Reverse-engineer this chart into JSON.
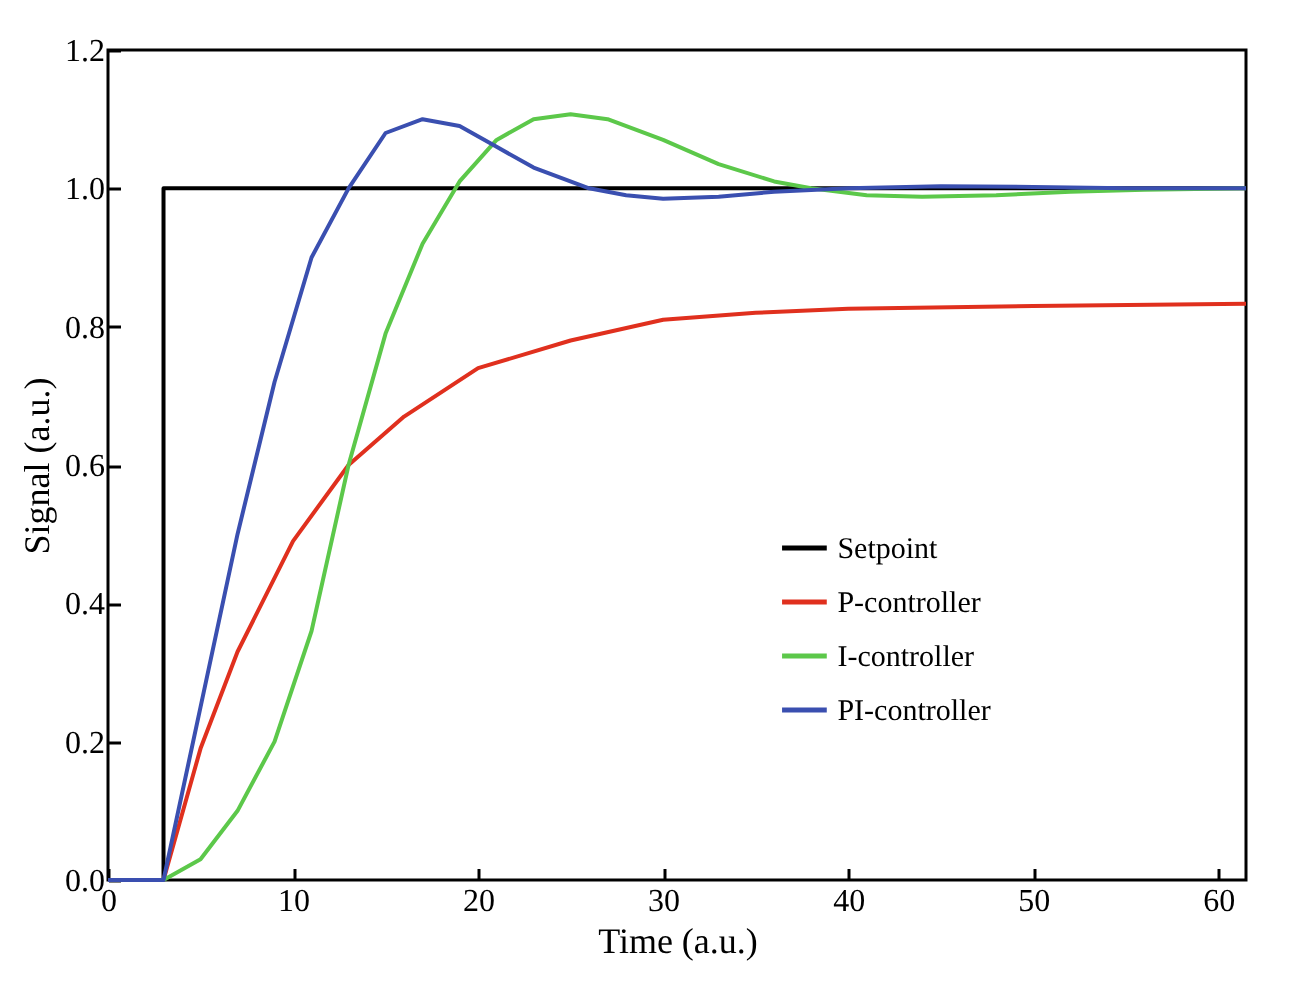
{
  "chart_data": {
    "type": "line",
    "xlabel": "Time (a.u.)",
    "ylabel": "Signal (a.u.)",
    "xlim": [
      0,
      61.5
    ],
    "xticks": [
      0,
      10,
      20,
      30,
      40,
      50,
      60
    ],
    "ylim": [
      0,
      1.2
    ],
    "yticks": [
      {
        "value": 0,
        "label": "0.0"
      },
      0.2,
      0.4,
      0.6,
      0.8,
      {
        "value": 1,
        "label": "1.0"
      },
      1.2
    ],
    "grid": false,
    "legend": "right",
    "line_style": "solid",
    "marker": "none",
    "series": [
      {
        "name": "Setpoint",
        "color": "#000000",
        "x": [
          0,
          3,
          3,
          61.5
        ],
        "values": [
          0,
          0,
          1,
          1
        ]
      },
      {
        "name": "P-controller",
        "color": "#e0301e",
        "x": [
          0,
          3,
          5,
          7,
          10,
          13,
          16,
          20,
          25,
          30,
          35,
          40,
          50,
          61.5
        ],
        "values": [
          0,
          0,
          0.19,
          0.33,
          0.49,
          0.6,
          0.67,
          0.74,
          0.78,
          0.81,
          0.82,
          0.826,
          0.83,
          0.833
        ]
      },
      {
        "name": "I-controller",
        "color": "#5cc84a",
        "x": [
          0,
          3,
          5,
          7,
          9,
          11,
          13,
          15,
          17,
          19,
          21,
          23,
          25,
          27,
          30,
          33,
          36,
          38,
          41,
          44,
          48,
          52,
          56,
          61.5
        ],
        "values": [
          0,
          0,
          0.03,
          0.1,
          0.2,
          0.36,
          0.6,
          0.79,
          0.92,
          1.01,
          1.07,
          1.1,
          1.107,
          1.1,
          1.07,
          1.035,
          1.01,
          1.0,
          0.99,
          0.988,
          0.99,
          0.995,
          0.998,
          1.0
        ]
      },
      {
        "name": "PI-controller",
        "color": "#3a4fb0",
        "x": [
          0,
          3,
          5,
          7,
          9,
          11,
          13,
          15,
          17,
          19,
          21,
          23,
          26,
          28,
          30,
          33,
          36,
          40,
          45,
          50,
          55,
          61.5
        ],
        "values": [
          0,
          0,
          0.25,
          0.5,
          0.72,
          0.9,
          1.0,
          1.08,
          1.1,
          1.09,
          1.06,
          1.03,
          1.0,
          0.99,
          0.985,
          0.988,
          0.995,
          1.0,
          1.003,
          1.002,
          1.0,
          1.0
        ]
      }
    ]
  }
}
